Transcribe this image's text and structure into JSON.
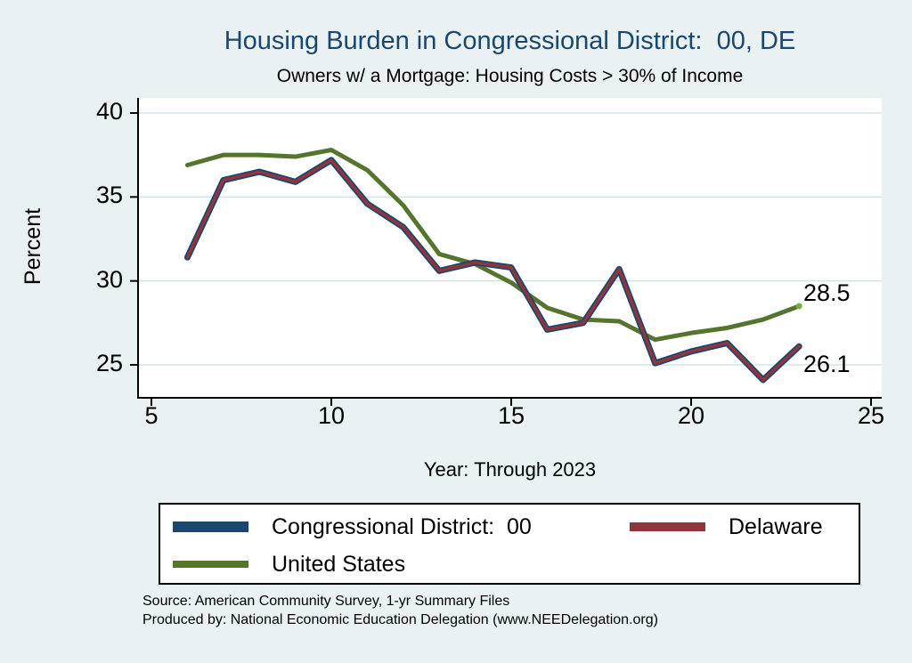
{
  "title": "Housing Burden in Congressional District:  00, DE",
  "subtitle": "Owners w/ a Mortgage: Housing Costs > 30% of Income",
  "colors": {
    "background": "#e9f1f2",
    "plot_bg": "#ffffff",
    "grid": "#d3e3e8",
    "axis": "#000000",
    "title": "#1a476f",
    "district": "#1a476f",
    "state": "#90353b",
    "us": "#55752f",
    "us_marker": "#76b041"
  },
  "chart_data": {
    "type": "line",
    "x": [
      6,
      7,
      8,
      9,
      10,
      11,
      12,
      13,
      14,
      15,
      16,
      17,
      18,
      19,
      20,
      21,
      22,
      23
    ],
    "series": [
      {
        "name": "Congressional District:  00",
        "color": "#1a476f",
        "values": [
          31.4,
          36.0,
          36.5,
          35.9,
          37.2,
          34.6,
          33.2,
          30.6,
          31.1,
          30.8,
          27.1,
          27.5,
          30.7,
          25.1,
          25.8,
          26.3,
          24.1,
          26.1
        ]
      },
      {
        "name": "Delaware",
        "color": "#90353b",
        "values": [
          31.4,
          36.0,
          36.5,
          35.9,
          37.2,
          34.6,
          33.2,
          30.6,
          31.1,
          30.8,
          27.1,
          27.5,
          30.7,
          25.1,
          25.8,
          26.3,
          24.1,
          26.1
        ]
      },
      {
        "name": "United States",
        "color": "#55752f",
        "values": [
          36.9,
          37.5,
          37.5,
          37.4,
          37.8,
          36.6,
          34.5,
          31.6,
          31.0,
          29.9,
          28.4,
          27.7,
          27.6,
          26.5,
          26.9,
          27.2,
          27.7,
          28.5
        ]
      }
    ],
    "xticks": [
      "5",
      "10",
      "15",
      "20",
      "25"
    ],
    "yticks": [
      "25",
      "30",
      "35",
      "40"
    ],
    "xlim": [
      5,
      25
    ],
    "ylim": [
      25,
      40
    ],
    "xlabel": "Year: Through 2023",
    "ylabel": "Percent",
    "grid": true,
    "legend_position": "bottom",
    "end_labels": [
      {
        "text": "28.5",
        "series": "United States"
      },
      {
        "text": "26.1",
        "series": "Congressional District:  00"
      }
    ]
  },
  "footer": {
    "source": "Source: American Community Survey, 1-yr Summary Files",
    "produced_by": "Produced by: National Economic Education Delegation (www.NEEDelegation.org)"
  }
}
